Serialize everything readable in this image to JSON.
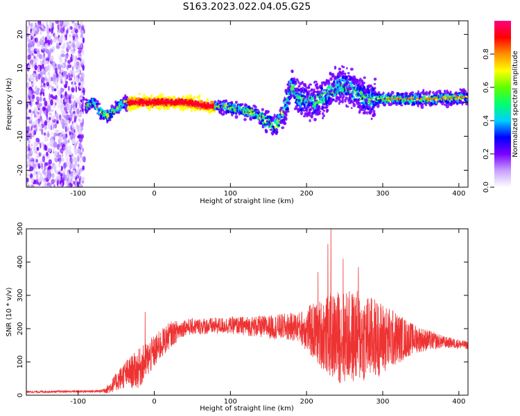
{
  "title": "S163.2023.022.04.05.G25",
  "chart_data": [
    {
      "type": "heatmap",
      "xlabel": "Height of straight line (km)",
      "ylabel": "Frequency (Hz)",
      "xlim": [
        -168,
        412
      ],
      "ylim": [
        -25,
        24
      ],
      "xticks": [
        -100,
        0,
        100,
        200,
        300,
        400
      ],
      "yticks": [
        -20,
        -10,
        0,
        10,
        20
      ],
      "noise_region_x": [
        -168,
        -92
      ],
      "ridge": [
        {
          "x": -90,
          "y": -1
        },
        {
          "x": -80,
          "y": 0
        },
        {
          "x": -70,
          "y": -3
        },
        {
          "x": -60,
          "y": -4
        },
        {
          "x": -50,
          "y": -2
        },
        {
          "x": -40,
          "y": 0
        },
        {
          "x": -30,
          "y": 0
        },
        {
          "x": 0,
          "y": 0
        },
        {
          "x": 40,
          "y": 0
        },
        {
          "x": 70,
          "y": -1
        },
        {
          "x": 100,
          "y": -1.5
        },
        {
          "x": 130,
          "y": -3
        },
        {
          "x": 150,
          "y": -6
        },
        {
          "x": 160,
          "y": -7
        },
        {
          "x": 170,
          "y": -3
        },
        {
          "x": 180,
          "y": 5
        },
        {
          "x": 190,
          "y": 1
        },
        {
          "x": 210,
          "y": 0
        },
        {
          "x": 230,
          "y": 3
        },
        {
          "x": 250,
          "y": 5
        },
        {
          "x": 265,
          "y": 3
        },
        {
          "x": 280,
          "y": 1
        },
        {
          "x": 320,
          "y": 1
        },
        {
          "x": 360,
          "y": 1
        },
        {
          "x": 412,
          "y": 1.5
        }
      ],
      "colorbar": {
        "label": "Normalized spectral amplitude",
        "ticks": [
          0.0,
          0.2,
          0.4,
          0.6,
          0.8
        ],
        "range": [
          0,
          1
        ],
        "colors": [
          "#ffffff",
          "#c8a0ff",
          "#7a00ff",
          "#0000ff",
          "#00d0ff",
          "#00ff70",
          "#60ff00",
          "#ffff00",
          "#ff9000",
          "#ff0000",
          "#ff0080"
        ]
      }
    },
    {
      "type": "line",
      "xlabel": "Height of straight line (km)",
      "ylabel": "SNR (10 * v/v)",
      "xlim": [
        -168,
        412
      ],
      "ylim": [
        0,
        500
      ],
      "xticks": [
        -100,
        0,
        100,
        200,
        300,
        400
      ],
      "yticks": [
        0,
        100,
        200,
        300,
        400,
        500
      ],
      "color": "#ee3333",
      "envelope": [
        {
          "x": -168,
          "mean": 10,
          "amp": 3
        },
        {
          "x": -70,
          "mean": 12,
          "amp": 4
        },
        {
          "x": -60,
          "mean": 20,
          "amp": 15
        },
        {
          "x": -40,
          "mean": 60,
          "amp": 40
        },
        {
          "x": -20,
          "mean": 80,
          "amp": 60
        },
        {
          "x": 0,
          "mean": 130,
          "amp": 50
        },
        {
          "x": 20,
          "mean": 180,
          "amp": 40
        },
        {
          "x": 40,
          "mean": 205,
          "amp": 25
        },
        {
          "x": 100,
          "mean": 210,
          "amp": 25
        },
        {
          "x": 150,
          "mean": 205,
          "amp": 35
        },
        {
          "x": 190,
          "mean": 205,
          "amp": 45
        },
        {
          "x": 210,
          "mean": 190,
          "amp": 90
        },
        {
          "x": 240,
          "mean": 175,
          "amp": 140
        },
        {
          "x": 270,
          "mean": 175,
          "amp": 140
        },
        {
          "x": 300,
          "mean": 170,
          "amp": 110
        },
        {
          "x": 340,
          "mean": 170,
          "amp": 45
        },
        {
          "x": 380,
          "mean": 160,
          "amp": 18
        },
        {
          "x": 412,
          "mean": 150,
          "amp": 12
        }
      ],
      "spikes": [
        {
          "x": -12,
          "y": 250
        },
        {
          "x": 215,
          "y": 370
        },
        {
          "x": 228,
          "y": 455
        },
        {
          "x": 232,
          "y": 500
        },
        {
          "x": 248,
          "y": 410
        },
        {
          "x": 268,
          "y": 385
        }
      ]
    }
  ]
}
